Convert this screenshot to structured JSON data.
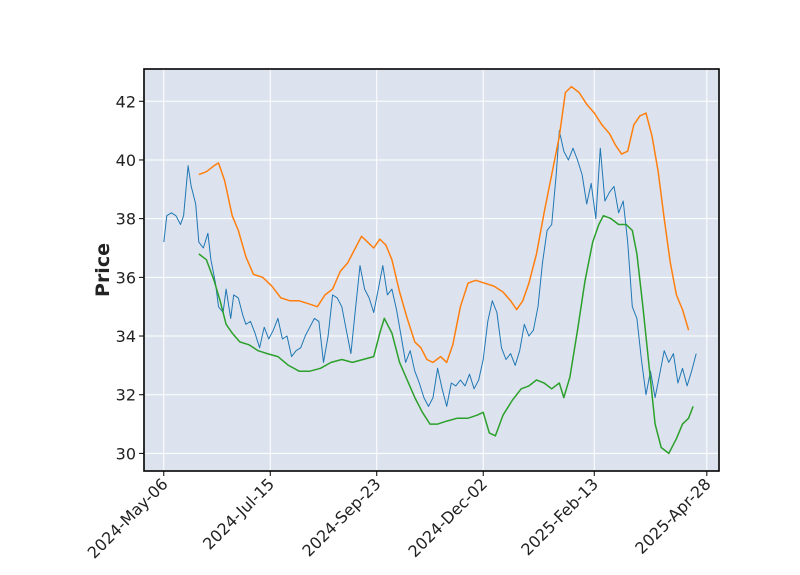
{
  "chart_data": {
    "type": "line",
    "title": "",
    "xlabel": "",
    "ylabel": "Price",
    "ylim": [
      29.4,
      43.1
    ],
    "xlim": [
      "2024-04-23",
      "2025-05-06"
    ],
    "grid": true,
    "legend": "none",
    "colors": {
      "background": "#dde3ee",
      "grid": "#ffffff",
      "frame": "#000000"
    },
    "x_ticks": [
      {
        "date": "2024-05-06",
        "label": "2024-May-06"
      },
      {
        "date": "2024-07-15",
        "label": "2024-Jul-15"
      },
      {
        "date": "2024-09-23",
        "label": "2024-Sep-23"
      },
      {
        "date": "2024-12-02",
        "label": "2024-Dec-02"
      },
      {
        "date": "2025-02-13",
        "label": "2025-Feb-13"
      },
      {
        "date": "2025-04-28",
        "label": "2025-Apr-28"
      }
    ],
    "y_ticks": [
      30,
      32,
      34,
      36,
      38,
      40,
      42
    ],
    "series": [
      {
        "color": "#1f77b4",
        "width": 1,
        "points": [
          [
            "2024-05-06",
            37.2
          ],
          [
            "2024-05-08",
            38.1
          ],
          [
            "2024-05-11",
            38.2
          ],
          [
            "2024-05-14",
            38.1
          ],
          [
            "2024-05-17",
            37.8
          ],
          [
            "2024-05-19",
            38.1
          ],
          [
            "2024-05-22",
            39.8
          ],
          [
            "2024-05-24",
            39.1
          ],
          [
            "2024-05-27",
            38.5
          ],
          [
            "2024-05-29",
            37.2
          ],
          [
            "2024-06-01",
            37.0
          ],
          [
            "2024-06-04",
            37.5
          ],
          [
            "2024-06-06",
            36.6
          ],
          [
            "2024-06-09",
            35.8
          ],
          [
            "2024-06-11",
            35.0
          ],
          [
            "2024-06-14",
            34.8
          ],
          [
            "2024-06-16",
            35.6
          ],
          [
            "2024-06-19",
            34.6
          ],
          [
            "2024-06-21",
            35.4
          ],
          [
            "2024-06-24",
            35.3
          ],
          [
            "2024-06-27",
            34.7
          ],
          [
            "2024-06-29",
            34.4
          ],
          [
            "2024-07-02",
            34.5
          ],
          [
            "2024-07-05",
            34.1
          ],
          [
            "2024-07-08",
            33.6
          ],
          [
            "2024-07-11",
            34.3
          ],
          [
            "2024-07-14",
            33.9
          ],
          [
            "2024-07-17",
            34.2
          ],
          [
            "2024-07-20",
            34.6
          ],
          [
            "2024-07-23",
            33.9
          ],
          [
            "2024-07-26",
            34.0
          ],
          [
            "2024-07-29",
            33.3
          ],
          [
            "2024-08-01",
            33.5
          ],
          [
            "2024-08-04",
            33.6
          ],
          [
            "2024-08-07",
            34.0
          ],
          [
            "2024-08-10",
            34.3
          ],
          [
            "2024-08-13",
            34.6
          ],
          [
            "2024-08-16",
            34.5
          ],
          [
            "2024-08-19",
            33.1
          ],
          [
            "2024-08-22",
            34.0
          ],
          [
            "2024-08-25",
            35.4
          ],
          [
            "2024-08-28",
            35.3
          ],
          [
            "2024-08-31",
            35.0
          ],
          [
            "2024-09-03",
            34.2
          ],
          [
            "2024-09-06",
            33.4
          ],
          [
            "2024-09-09",
            34.9
          ],
          [
            "2024-09-12",
            36.4
          ],
          [
            "2024-09-15",
            35.6
          ],
          [
            "2024-09-18",
            35.3
          ],
          [
            "2024-09-21",
            34.8
          ],
          [
            "2024-09-24",
            35.6
          ],
          [
            "2024-09-27",
            36.4
          ],
          [
            "2024-09-30",
            35.4
          ],
          [
            "2024-10-03",
            35.6
          ],
          [
            "2024-10-06",
            34.9
          ],
          [
            "2024-10-09",
            34.0
          ],
          [
            "2024-10-12",
            33.1
          ],
          [
            "2024-10-15",
            33.5
          ],
          [
            "2024-10-18",
            32.8
          ],
          [
            "2024-10-21",
            32.4
          ],
          [
            "2024-10-24",
            31.9
          ],
          [
            "2024-10-27",
            31.6
          ],
          [
            "2024-10-30",
            31.9
          ],
          [
            "2024-11-02",
            32.9
          ],
          [
            "2024-11-05",
            32.2
          ],
          [
            "2024-11-08",
            31.6
          ],
          [
            "2024-11-11",
            32.4
          ],
          [
            "2024-11-14",
            32.3
          ],
          [
            "2024-11-17",
            32.5
          ],
          [
            "2024-11-20",
            32.3
          ],
          [
            "2024-11-23",
            32.7
          ],
          [
            "2024-11-26",
            32.2
          ],
          [
            "2024-11-29",
            32.5
          ],
          [
            "2024-12-02",
            33.2
          ],
          [
            "2024-12-05",
            34.5
          ],
          [
            "2024-12-08",
            35.2
          ],
          [
            "2024-12-11",
            34.8
          ],
          [
            "2024-12-14",
            33.6
          ],
          [
            "2024-12-17",
            33.2
          ],
          [
            "2024-12-20",
            33.4
          ],
          [
            "2024-12-23",
            33.0
          ],
          [
            "2024-12-26",
            33.5
          ],
          [
            "2024-12-29",
            34.4
          ],
          [
            "2025-01-01",
            34.0
          ],
          [
            "2025-01-04",
            34.2
          ],
          [
            "2025-01-07",
            35.0
          ],
          [
            "2025-01-10",
            36.5
          ],
          [
            "2025-01-13",
            37.6
          ],
          [
            "2025-01-16",
            37.8
          ],
          [
            "2025-01-19",
            39.5
          ],
          [
            "2025-01-21",
            41.0
          ],
          [
            "2025-01-24",
            40.3
          ],
          [
            "2025-01-27",
            40.0
          ],
          [
            "2025-01-30",
            40.4
          ],
          [
            "2025-02-02",
            40.0
          ],
          [
            "2025-02-05",
            39.5
          ],
          [
            "2025-02-08",
            38.5
          ],
          [
            "2025-02-11",
            39.2
          ],
          [
            "2025-02-14",
            38.0
          ],
          [
            "2025-02-17",
            40.4
          ],
          [
            "2025-02-20",
            38.6
          ],
          [
            "2025-02-23",
            38.9
          ],
          [
            "2025-02-26",
            39.1
          ],
          [
            "2025-03-01",
            38.2
          ],
          [
            "2025-03-04",
            38.6
          ],
          [
            "2025-03-07",
            37.2
          ],
          [
            "2025-03-10",
            35.0
          ],
          [
            "2025-03-13",
            34.6
          ],
          [
            "2025-03-16",
            33.2
          ],
          [
            "2025-03-19",
            32.0
          ],
          [
            "2025-03-22",
            32.8
          ],
          [
            "2025-03-25",
            31.9
          ],
          [
            "2025-03-28",
            32.7
          ],
          [
            "2025-03-31",
            33.5
          ],
          [
            "2025-04-03",
            33.1
          ],
          [
            "2025-04-06",
            33.4
          ],
          [
            "2025-04-09",
            32.4
          ],
          [
            "2025-04-12",
            32.9
          ],
          [
            "2025-04-15",
            32.3
          ],
          [
            "2025-04-18",
            32.8
          ],
          [
            "2025-04-21",
            33.4
          ]
        ]
      },
      {
        "color": "#ff7f0e",
        "width": 1.5,
        "points": [
          [
            "2024-05-29",
            39.5
          ],
          [
            "2024-06-03",
            39.6
          ],
          [
            "2024-06-08",
            39.8
          ],
          [
            "2024-06-11",
            39.9
          ],
          [
            "2024-06-15",
            39.3
          ],
          [
            "2024-06-20",
            38.1
          ],
          [
            "2024-06-24",
            37.6
          ],
          [
            "2024-06-29",
            36.7
          ],
          [
            "2024-07-04",
            36.1
          ],
          [
            "2024-07-10",
            36.0
          ],
          [
            "2024-07-16",
            35.7
          ],
          [
            "2024-07-22",
            35.3
          ],
          [
            "2024-07-28",
            35.2
          ],
          [
            "2024-08-03",
            35.2
          ],
          [
            "2024-08-09",
            35.1
          ],
          [
            "2024-08-15",
            35.0
          ],
          [
            "2024-08-20",
            35.4
          ],
          [
            "2024-08-25",
            35.6
          ],
          [
            "2024-08-30",
            36.2
          ],
          [
            "2024-09-04",
            36.5
          ],
          [
            "2024-09-09",
            37.0
          ],
          [
            "2024-09-13",
            37.4
          ],
          [
            "2024-09-17",
            37.2
          ],
          [
            "2024-09-21",
            37.0
          ],
          [
            "2024-09-25",
            37.3
          ],
          [
            "2024-09-29",
            37.1
          ],
          [
            "2024-10-03",
            36.6
          ],
          [
            "2024-10-08",
            35.5
          ],
          [
            "2024-10-13",
            34.6
          ],
          [
            "2024-10-18",
            33.8
          ],
          [
            "2024-10-22",
            33.6
          ],
          [
            "2024-10-26",
            33.2
          ],
          [
            "2024-10-30",
            33.1
          ],
          [
            "2024-11-04",
            33.3
          ],
          [
            "2024-11-08",
            33.1
          ],
          [
            "2024-11-12",
            33.7
          ],
          [
            "2024-11-17",
            35.0
          ],
          [
            "2024-11-22",
            35.8
          ],
          [
            "2024-11-27",
            35.9
          ],
          [
            "2024-12-03",
            35.8
          ],
          [
            "2024-12-09",
            35.7
          ],
          [
            "2024-12-15",
            35.5
          ],
          [
            "2024-12-20",
            35.2
          ],
          [
            "2024-12-24",
            34.9
          ],
          [
            "2024-12-28",
            35.2
          ],
          [
            "2025-01-01",
            35.8
          ],
          [
            "2025-01-06",
            36.8
          ],
          [
            "2025-01-11",
            38.2
          ],
          [
            "2025-01-16",
            39.5
          ],
          [
            "2025-01-21",
            40.8
          ],
          [
            "2025-01-25",
            42.3
          ],
          [
            "2025-01-29",
            42.5
          ],
          [
            "2025-02-03",
            42.3
          ],
          [
            "2025-02-08",
            41.9
          ],
          [
            "2025-02-13",
            41.6
          ],
          [
            "2025-02-18",
            41.2
          ],
          [
            "2025-02-23",
            40.9
          ],
          [
            "2025-02-27",
            40.5
          ],
          [
            "2025-03-03",
            40.2
          ],
          [
            "2025-03-07",
            40.3
          ],
          [
            "2025-03-11",
            41.2
          ],
          [
            "2025-03-15",
            41.5
          ],
          [
            "2025-03-19",
            41.6
          ],
          [
            "2025-03-23",
            40.8
          ],
          [
            "2025-03-27",
            39.6
          ],
          [
            "2025-03-31",
            38.0
          ],
          [
            "2025-04-04",
            36.5
          ],
          [
            "2025-04-08",
            35.4
          ],
          [
            "2025-04-12",
            34.9
          ],
          [
            "2025-04-16",
            34.2
          ]
        ]
      },
      {
        "color": "#2ca02c",
        "width": 1.5,
        "points": [
          [
            "2024-05-29",
            36.8
          ],
          [
            "2024-06-03",
            36.6
          ],
          [
            "2024-06-08",
            35.9
          ],
          [
            "2024-06-12",
            35.2
          ],
          [
            "2024-06-16",
            34.4
          ],
          [
            "2024-06-20",
            34.1
          ],
          [
            "2024-06-25",
            33.8
          ],
          [
            "2024-07-01",
            33.7
          ],
          [
            "2024-07-07",
            33.5
          ],
          [
            "2024-07-13",
            33.4
          ],
          [
            "2024-07-20",
            33.3
          ],
          [
            "2024-07-27",
            33.0
          ],
          [
            "2024-08-03",
            32.8
          ],
          [
            "2024-08-10",
            32.8
          ],
          [
            "2024-08-17",
            32.9
          ],
          [
            "2024-08-24",
            33.1
          ],
          [
            "2024-08-31",
            33.2
          ],
          [
            "2024-09-07",
            33.1
          ],
          [
            "2024-09-14",
            33.2
          ],
          [
            "2024-09-21",
            33.3
          ],
          [
            "2024-09-25",
            34.1
          ],
          [
            "2024-09-28",
            34.6
          ],
          [
            "2024-10-03",
            34.1
          ],
          [
            "2024-10-08",
            33.1
          ],
          [
            "2024-10-13",
            32.5
          ],
          [
            "2024-10-18",
            31.9
          ],
          [
            "2024-10-23",
            31.4
          ],
          [
            "2024-10-28",
            31.0
          ],
          [
            "2024-11-02",
            31.0
          ],
          [
            "2024-11-08",
            31.1
          ],
          [
            "2024-11-15",
            31.2
          ],
          [
            "2024-11-22",
            31.2
          ],
          [
            "2024-11-28",
            31.3
          ],
          [
            "2024-12-02",
            31.4
          ],
          [
            "2024-12-06",
            30.7
          ],
          [
            "2024-12-10",
            30.6
          ],
          [
            "2024-12-15",
            31.3
          ],
          [
            "2024-12-21",
            31.8
          ],
          [
            "2024-12-27",
            32.2
          ],
          [
            "2025-01-01",
            32.3
          ],
          [
            "2025-01-06",
            32.5
          ],
          [
            "2025-01-11",
            32.4
          ],
          [
            "2025-01-16",
            32.2
          ],
          [
            "2025-01-21",
            32.4
          ],
          [
            "2025-01-24",
            31.9
          ],
          [
            "2025-01-28",
            32.6
          ],
          [
            "2025-02-02",
            34.2
          ],
          [
            "2025-02-07",
            35.9
          ],
          [
            "2025-02-12",
            37.2
          ],
          [
            "2025-02-16",
            37.8
          ],
          [
            "2025-02-19",
            38.1
          ],
          [
            "2025-02-24",
            38.0
          ],
          [
            "2025-03-01",
            37.8
          ],
          [
            "2025-03-06",
            37.8
          ],
          [
            "2025-03-10",
            37.6
          ],
          [
            "2025-03-13",
            36.8
          ],
          [
            "2025-03-17",
            35.0
          ],
          [
            "2025-03-21",
            33.0
          ],
          [
            "2025-03-25",
            31.0
          ],
          [
            "2025-03-29",
            30.2
          ],
          [
            "2025-04-03",
            30.0
          ],
          [
            "2025-04-08",
            30.5
          ],
          [
            "2025-04-12",
            31.0
          ],
          [
            "2025-04-16",
            31.2
          ],
          [
            "2025-04-19",
            31.6
          ]
        ]
      }
    ]
  }
}
